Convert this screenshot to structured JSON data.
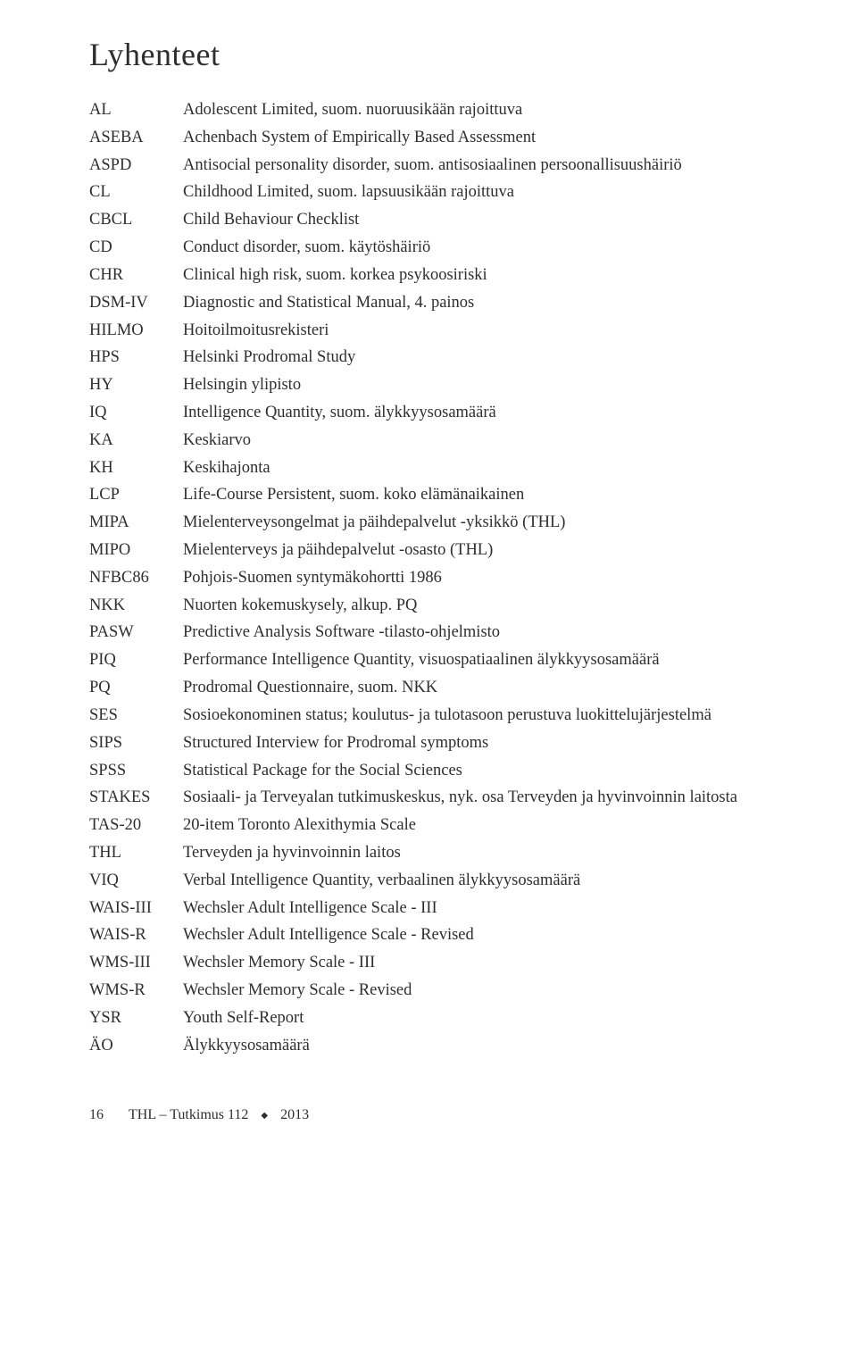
{
  "title": "Lyhenteet",
  "entries": [
    {
      "abbr": "AL",
      "def": "Adolescent Limited, suom. nuoruusikään rajoittuva"
    },
    {
      "abbr": "ASEBA",
      "def": "Achenbach System of Empirically Based Assessment"
    },
    {
      "abbr": "ASPD",
      "def": "Antisocial personality disorder, suom. antisosiaalinen persoonallisuushäiriö"
    },
    {
      "abbr": "CL",
      "def": "Childhood Limited, suom. lapsuusikään rajoittuva"
    },
    {
      "abbr": "CBCL",
      "def": "Child Behaviour Checklist"
    },
    {
      "abbr": "CD",
      "def": "Conduct disorder, suom. käytöshäiriö"
    },
    {
      "abbr": "CHR",
      "def": "Clinical high risk, suom. korkea psykoosiriski"
    },
    {
      "abbr": "DSM-IV",
      "def": "Diagnostic and Statistical Manual, 4. painos"
    },
    {
      "abbr": "HILMO",
      "def": "Hoitoilmoitusrekisteri"
    },
    {
      "abbr": "HPS",
      "def": "Helsinki Prodromal Study"
    },
    {
      "abbr": "HY",
      "def": "Helsingin ylipisto"
    },
    {
      "abbr": "IQ",
      "def": "Intelligence Quantity, suom. älykkyysosamäärä"
    },
    {
      "abbr": "KA",
      "def": "Keskiarvo"
    },
    {
      "abbr": "KH",
      "def": "Keskihajonta"
    },
    {
      "abbr": "LCP",
      "def": "Life-Course Persistent, suom. koko elämänaikainen"
    },
    {
      "abbr": "MIPA",
      "def": "Mielenterveysongelmat ja päihdepalvelut -yksikkö (THL)"
    },
    {
      "abbr": "MIPO",
      "def": "Mielenterveys ja päihdepalvelut -osasto (THL)"
    },
    {
      "abbr": "NFBC86",
      "def": "Pohjois-Suomen syntymäkohortti 1986"
    },
    {
      "abbr": "NKK",
      "def": "Nuorten kokemuskysely, alkup. PQ"
    },
    {
      "abbr": "PASW",
      "def": "Predictive Analysis Software -tilasto-ohjelmisto"
    },
    {
      "abbr": "PIQ",
      "def": "Performance Intelligence Quantity, visuospatiaalinen älykkyysosamäärä"
    },
    {
      "abbr": "PQ",
      "def": "Prodromal Questionnaire, suom. NKK"
    },
    {
      "abbr": "SES",
      "def": "Sosioekonominen status; koulutus- ja tulotasoon perustuva luokittelujärjestelmä"
    },
    {
      "abbr": "SIPS",
      "def": "Structured Interview for Prodromal symptoms"
    },
    {
      "abbr": "SPSS",
      "def": "Statistical Package for the Social Sciences"
    },
    {
      "abbr": "STAKES",
      "def": "Sosiaali- ja Terveyalan tutkimuskeskus, nyk. osa Terveyden ja hyvinvoinnin laitosta"
    },
    {
      "abbr": "TAS-20",
      "def": "20-item Toronto Alexithymia Scale"
    },
    {
      "abbr": "THL",
      "def": "Terveyden ja hyvinvoinnin laitos"
    },
    {
      "abbr": "VIQ",
      "def": "Verbal Intelligence Quantity, verbaalinen älykkyysosamäärä"
    },
    {
      "abbr": "WAIS-III",
      "def": "Wechsler Adult Intelligence Scale - III"
    },
    {
      "abbr": "WAIS-R",
      "def": "Wechsler Adult Intelligence Scale - Revised"
    },
    {
      "abbr": "WMS-III",
      "def": "Wechsler Memory Scale - III"
    },
    {
      "abbr": "WMS-R",
      "def": "Wechsler Memory Scale - Revised"
    },
    {
      "abbr": "YSR",
      "def": "Youth Self-Report"
    },
    {
      "abbr": "ÄO",
      "def": "Älykkyysosamäärä"
    }
  ],
  "footer": {
    "page": "16",
    "text": "THL – Tutkimus 112",
    "year": "2013"
  }
}
